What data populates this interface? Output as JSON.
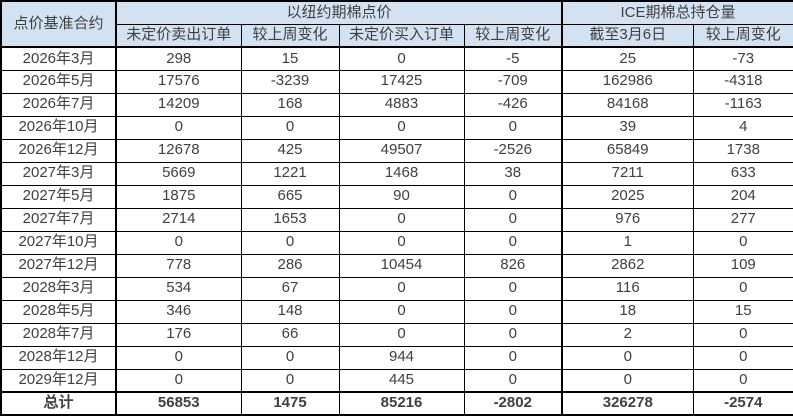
{
  "chart_data": {
    "type": "table",
    "corner_header": "点价基准合约",
    "column_groups": [
      {
        "label": "以纽约期棉点价",
        "span": 4
      },
      {
        "label": "ICE期棉总持仓量",
        "span": 2
      }
    ],
    "sub_headers": [
      "未定价卖出订单",
      "较上周变化",
      "未定价买入订单",
      "较上周变化",
      "截至3月6日",
      "较上周变化"
    ],
    "rows": [
      {
        "contract": "2026年3月",
        "values": [
          298,
          15,
          0,
          -5,
          25,
          -73
        ]
      },
      {
        "contract": "2026年5月",
        "values": [
          17576,
          -3239,
          17425,
          -709,
          162986,
          -4318
        ]
      },
      {
        "contract": "2026年7月",
        "values": [
          14209,
          168,
          4883,
          -426,
          84168,
          -1163
        ]
      },
      {
        "contract": "2026年10月",
        "values": [
          0,
          0,
          0,
          0,
          39,
          4
        ]
      },
      {
        "contract": "2026年12月",
        "values": [
          12678,
          425,
          49507,
          -2526,
          65849,
          1738
        ]
      },
      {
        "contract": "2027年3月",
        "values": [
          5669,
          1221,
          1468,
          38,
          7211,
          633
        ]
      },
      {
        "contract": "2027年5月",
        "values": [
          1875,
          665,
          90,
          0,
          2025,
          204
        ]
      },
      {
        "contract": "2027年7月",
        "values": [
          2714,
          1653,
          0,
          0,
          976,
          277
        ]
      },
      {
        "contract": "2027年10月",
        "values": [
          0,
          0,
          0,
          0,
          1,
          0
        ]
      },
      {
        "contract": "2027年12月",
        "values": [
          778,
          286,
          10454,
          826,
          2862,
          109
        ]
      },
      {
        "contract": "2028年3月",
        "values": [
          534,
          67,
          0,
          0,
          116,
          0
        ]
      },
      {
        "contract": "2028年5月",
        "values": [
          346,
          148,
          0,
          0,
          18,
          15
        ]
      },
      {
        "contract": "2028年7月",
        "values": [
          176,
          66,
          0,
          0,
          2,
          0
        ]
      },
      {
        "contract": "2028年12月",
        "values": [
          0,
          0,
          944,
          0,
          0,
          0
        ]
      },
      {
        "contract": "2029年12月",
        "values": [
          0,
          0,
          445,
          0,
          0,
          0
        ]
      }
    ],
    "total": {
      "label": "总计",
      "values": [
        56853,
        1475,
        85216,
        -2802,
        326278,
        -2574
      ]
    }
  },
  "colors": {
    "header_bg": "#D2E2F2",
    "body_bg": "#FFFFFF",
    "border": "#000000",
    "text": "#404040"
  }
}
